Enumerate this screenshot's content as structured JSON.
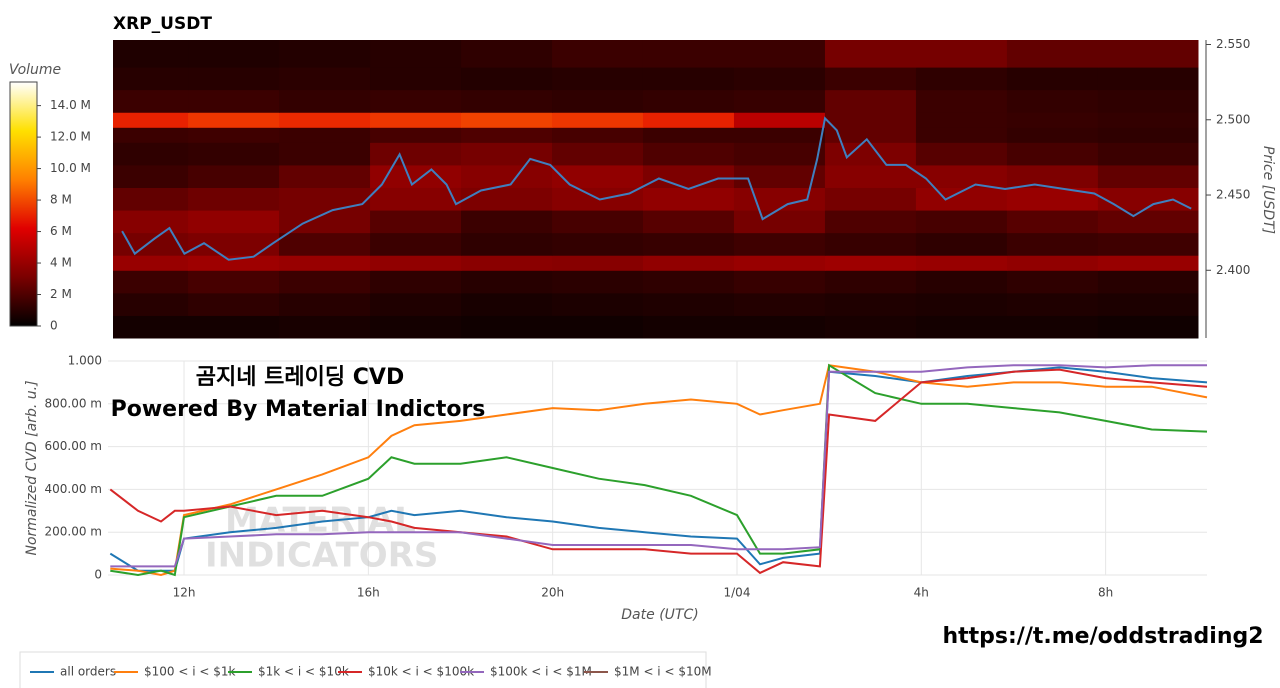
{
  "chart_data": [
    {
      "type": "heatmap",
      "title": "XRP_USDT",
      "ylabel": "Price [USDT]",
      "xlim": [
        10.35,
        34.2
      ],
      "ylim": [
        2.355,
        2.553
      ],
      "yticks": [
        {
          "value": 2.4,
          "label": "2.400"
        },
        {
          "value": 2.45,
          "label": "2.450"
        },
        {
          "value": 2.5,
          "label": "2.500"
        },
        {
          "value": 2.55,
          "label": "2.550"
        }
      ],
      "x_bins": [
        10.35,
        12,
        14,
        16,
        18,
        20,
        22,
        24,
        26,
        28,
        30,
        32,
        34.2
      ],
      "y_bins": [
        2.355,
        2.37,
        2.385,
        2.4,
        2.41,
        2.425,
        2.44,
        2.455,
        2.47,
        2.485,
        2.495,
        2.505,
        2.52,
        2.535,
        2.553
      ],
      "z": [
        [
          0.5,
          0.5,
          0.6,
          0.5,
          0.4,
          0.4,
          0.5,
          0.5,
          0.6,
          0.5,
          0.5,
          0.4
        ],
        [
          1,
          1.2,
          1,
          0.8,
          0.6,
          0.7,
          0.8,
          0.9,
          0.8,
          0.7,
          0.8,
          0.7
        ],
        [
          1.5,
          1.8,
          1.5,
          1.2,
          1,
          1.1,
          1.2,
          1.4,
          1.2,
          1,
          1.2,
          1
        ],
        [
          4,
          4.2,
          4,
          3.8,
          3.6,
          3.5,
          3.8,
          4,
          4.2,
          4,
          3.8,
          4
        ],
        [
          3,
          3.2,
          2,
          1.5,
          1.2,
          1.3,
          1.4,
          1.6,
          1.4,
          1.2,
          1.5,
          1.6
        ],
        [
          3.5,
          3.8,
          3,
          2.2,
          1.5,
          1.8,
          2.2,
          3,
          2,
          1.8,
          2.2,
          2.5
        ],
        [
          2.5,
          2.8,
          3,
          3.5,
          3.2,
          3.5,
          3.8,
          3.5,
          3,
          3.8,
          4,
          3.5
        ],
        [
          1.5,
          1.8,
          2.5,
          3.8,
          3.5,
          3.8,
          3.2,
          2.5,
          3.5,
          3.5,
          3.2,
          2.5
        ],
        [
          1.2,
          1.3,
          1.5,
          2.8,
          3,
          2.5,
          2,
          1.8,
          3.2,
          2.2,
          1.8,
          1.5
        ],
        [
          1.5,
          1.6,
          1.5,
          1.8,
          2,
          1.8,
          1.5,
          1.5,
          2.5,
          1.5,
          1.3,
          1.2
        ],
        [
          7,
          7.5,
          7.2,
          7.5,
          7.8,
          7.5,
          7,
          5,
          2.5,
          1.5,
          1.4,
          1.3
        ],
        [
          1.5,
          1.5,
          1.3,
          1.4,
          1.3,
          1.2,
          1.3,
          1.4,
          2.5,
          1.5,
          1.3,
          1.2
        ],
        [
          1,
          1,
          1.1,
          1,
          0.9,
          1,
          1,
          1.1,
          1.5,
          1.2,
          1,
          1
        ],
        [
          0.8,
          0.8,
          0.9,
          1,
          1.2,
          1.5,
          1.5,
          1.5,
          3,
          3,
          2.5,
          2.5
        ]
      ],
      "colorscale": [
        "#000000",
        "#7a0000",
        "#e00000",
        "#ff8000",
        "#ffe000",
        "#ffffff"
      ],
      "colorbar": {
        "title": "Volume",
        "zlim": [
          0,
          15.5
        ],
        "ticks": [
          0,
          {
            "value": 2,
            "label": "2 M"
          },
          {
            "value": 4,
            "label": "4 M"
          },
          {
            "value": 6,
            "label": "6 M"
          },
          {
            "value": 8,
            "label": "8 M"
          },
          {
            "value": 10,
            "label": "10.0 M"
          },
          {
            "value": 12,
            "label": "12.0 M"
          },
          {
            "value": 14,
            "label": "14.0 M"
          }
        ]
      },
      "price_line": {
        "color": "#3f7fbf",
        "x": [
          10.55,
          10.83,
          11.26,
          11.59,
          11.92,
          12.35,
          12.89,
          13.44,
          13.87,
          14.52,
          15.18,
          15.83,
          16.26,
          16.65,
          16.92,
          17.35,
          17.68,
          17.89,
          18.44,
          19.09,
          19.52,
          19.96,
          20.39,
          21.05,
          21.7,
          22.35,
          23.0,
          23.65,
          24.31,
          24.63,
          25.18,
          25.61,
          25.83,
          26.0,
          26.26,
          26.48,
          26.92,
          27.35,
          27.78,
          28.22,
          28.65,
          29.31,
          29.96,
          30.61,
          31.26,
          31.92,
          32.35,
          32.78,
          33.22,
          33.65,
          34.05
        ],
        "values": [
          2.426,
          2.411,
          2.421,
          2.428,
          2.411,
          2.418,
          2.407,
          2.409,
          2.418,
          2.431,
          2.44,
          2.444,
          2.457,
          2.477,
          2.457,
          2.467,
          2.457,
          2.444,
          2.453,
          2.457,
          2.474,
          2.47,
          2.457,
          2.447,
          2.451,
          2.461,
          2.454,
          2.461,
          2.461,
          2.434,
          2.444,
          2.447,
          2.474,
          2.501,
          2.493,
          2.475,
          2.487,
          2.47,
          2.47,
          2.461,
          2.447,
          2.457,
          2.454,
          2.457,
          2.454,
          2.451,
          2.444,
          2.436,
          2.444,
          2.447,
          2.441
        ]
      }
    },
    {
      "type": "line",
      "xlabel": "Date (UTC)",
      "ylabel": "Normalized CVD [arb. u.]",
      "xlim": [
        10.35,
        34.2
      ],
      "xticks": [
        {
          "value": 12,
          "label": "12h"
        },
        {
          "value": 16,
          "label": "16h"
        },
        {
          "value": 20,
          "label": "20h"
        },
        {
          "value": 24,
          "label": "1/04"
        },
        {
          "value": 28,
          "label": "4h"
        },
        {
          "value": 32,
          "label": "8h"
        }
      ],
      "ylim": [
        0,
        1
      ],
      "yticks": [
        0,
        {
          "value": 0.2,
          "label": "200.00 m"
        },
        {
          "value": 0.4,
          "label": "400.00 m"
        },
        {
          "value": 0.6,
          "label": "600.00 m"
        },
        {
          "value": 0.8,
          "label": "800.00 m"
        },
        {
          "value": 1,
          "label": "1.000"
        }
      ],
      "grid": true,
      "legend": "bottom",
      "annotations": [
        "곰지네 트레이딩 CVD",
        "Powered By Material Indictors"
      ],
      "watermark": [
        "MATERIAL",
        "INDICATORS"
      ],
      "x": [
        10.4,
        11,
        11.5,
        11.8,
        12,
        13,
        14,
        15,
        16,
        16.5,
        17,
        18,
        19,
        20,
        21,
        22,
        23,
        24,
        24.5,
        25,
        25.8,
        26,
        27,
        28,
        29,
        30,
        31,
        32,
        33,
        34.2
      ],
      "series": [
        {
          "name": "all orders",
          "color": "#1f77b4",
          "values": [
            0.1,
            0.02,
            0.02,
            0.02,
            0.17,
            0.2,
            0.22,
            0.25,
            0.27,
            0.3,
            0.28,
            0.3,
            0.27,
            0.25,
            0.22,
            0.2,
            0.18,
            0.17,
            0.05,
            0.08,
            0.1,
            0.95,
            0.93,
            0.9,
            0.93,
            0.95,
            0.97,
            0.95,
            0.92,
            0.9
          ]
        },
        {
          "name": "$100 < i < $1k",
          "color": "#ff7f0e",
          "values": [
            0.03,
            0.02,
            0,
            0.02,
            0.28,
            0.33,
            0.4,
            0.47,
            0.55,
            0.65,
            0.7,
            0.72,
            0.75,
            0.78,
            0.77,
            0.8,
            0.82,
            0.8,
            0.75,
            0.77,
            0.8,
            0.98,
            0.95,
            0.9,
            0.88,
            0.9,
            0.9,
            0.88,
            0.88,
            0.83
          ]
        },
        {
          "name": "$1k < i < $10k",
          "color": "#2ca02c",
          "values": [
            0.02,
            0,
            0.02,
            0,
            0.27,
            0.32,
            0.37,
            0.37,
            0.45,
            0.55,
            0.52,
            0.52,
            0.55,
            0.5,
            0.45,
            0.42,
            0.37,
            0.28,
            0.1,
            0.1,
            0.12,
            0.98,
            0.85,
            0.8,
            0.8,
            0.78,
            0.76,
            0.72,
            0.68,
            0.67
          ]
        },
        {
          "name": "$10k < i < $100k",
          "color": "#d62728",
          "values": [
            0.4,
            0.3,
            0.25,
            0.3,
            0.3,
            0.32,
            0.28,
            0.3,
            0.27,
            0.25,
            0.22,
            0.2,
            0.18,
            0.12,
            0.12,
            0.12,
            0.1,
            0.1,
            0.01,
            0.06,
            0.04,
            0.75,
            0.72,
            0.9,
            0.92,
            0.95,
            0.96,
            0.92,
            0.9,
            0.88
          ]
        },
        {
          "name": "$100k < i < $1M",
          "color": "#9467bd",
          "values": [
            0.04,
            0.04,
            0.04,
            0.04,
            0.17,
            0.18,
            0.19,
            0.19,
            0.2,
            0.2,
            0.2,
            0.2,
            0.17,
            0.14,
            0.14,
            0.14,
            0.14,
            0.12,
            0.12,
            0.12,
            0.13,
            0.95,
            0.95,
            0.95,
            0.97,
            0.98,
            0.98,
            0.97,
            0.98,
            0.98
          ]
        },
        {
          "name": "$1M < i < $10M",
          "color": "#8c564b",
          "values": [
            null,
            null,
            null,
            null,
            null,
            null,
            null,
            null,
            null,
            null,
            null,
            null,
            null,
            null,
            null,
            null,
            null,
            null,
            null,
            null,
            null,
            null,
            null,
            null,
            null,
            null,
            null,
            null,
            null,
            null
          ]
        }
      ]
    }
  ],
  "footer_link": "https://t.me/oddstrading2"
}
